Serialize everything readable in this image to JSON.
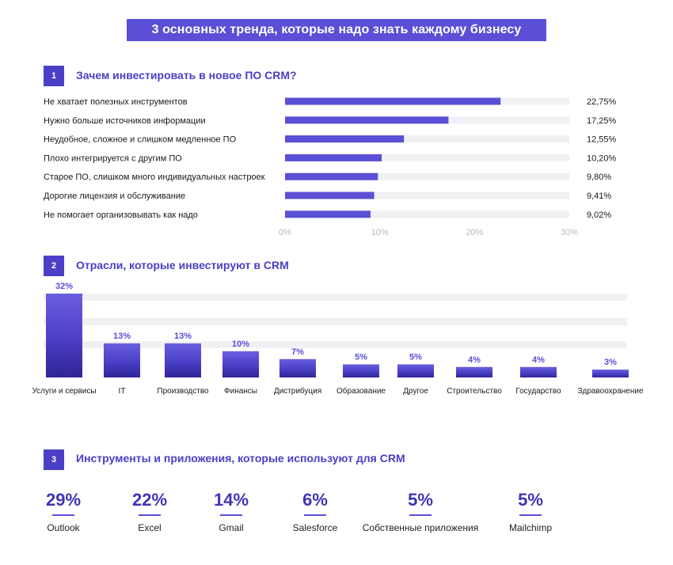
{
  "title": "3 основных тренда, которые надо знать каждому бизнесу",
  "sections": [
    {
      "number": "1",
      "title": "Зачем инвестировать в новое ПО CRM?"
    },
    {
      "number": "2",
      "title": "Отрасли, которые инвестируют в CRM"
    },
    {
      "number": "3",
      "title": "Инструменты и приложения, которые используют для CRM"
    }
  ],
  "colors": {
    "accent": "#5a4fd6",
    "accent_dark": "#3a2fa6",
    "track": "#f1f1f3"
  },
  "chart_data": [
    {
      "type": "bar",
      "orientation": "horizontal",
      "categories": [
        "Не хватает полезных инструментов",
        "Нужно больше источников информации",
        "Неудобное, сложное и слишком медленное ПО",
        "Плохо интегрируется с другим ПО",
        "Старое ПО, слишком много индивидуальных настроек",
        "Дорогие лицензия и обслуживание",
        "Не помогает организовывать как надо"
      ],
      "values": [
        22.75,
        17.25,
        12.55,
        10.2,
        9.8,
        9.41,
        9.02
      ],
      "value_labels": [
        "22,75%",
        "17,25%",
        "12,55%",
        "10,20%",
        "9,80%",
        "9,41%",
        "9,02%"
      ],
      "xlim": [
        0,
        30
      ],
      "ticks": [
        0,
        10,
        20,
        30
      ],
      "tick_labels": [
        "0%",
        "10%",
        "20%",
        "30%"
      ]
    },
    {
      "type": "bar",
      "orientation": "vertical",
      "categories": [
        "Услуги и сервисы",
        "IT",
        "Производство",
        "Финансы",
        "Дистрибуция",
        "Образование",
        "Другое",
        "Строительство",
        "Государство",
        "Здравоохранение"
      ],
      "values": [
        32,
        13,
        13,
        10,
        7,
        5,
        5,
        4,
        4,
        3
      ],
      "value_labels": [
        "32%",
        "13%",
        "13%",
        "10%",
        "7%",
        "5%",
        "5%",
        "4%",
        "4%",
        "3%"
      ],
      "ylim": [
        0,
        32
      ]
    }
  ],
  "tools": [
    {
      "pct": "29%",
      "name": "Outlook"
    },
    {
      "pct": "22%",
      "name": "Excel"
    },
    {
      "pct": "14%",
      "name": "Gmail"
    },
    {
      "pct": "6%",
      "name": "Salesforce"
    },
    {
      "pct": "5%",
      "name": "Собственные приложения"
    },
    {
      "pct": "5%",
      "name": "Mailchimp"
    }
  ]
}
